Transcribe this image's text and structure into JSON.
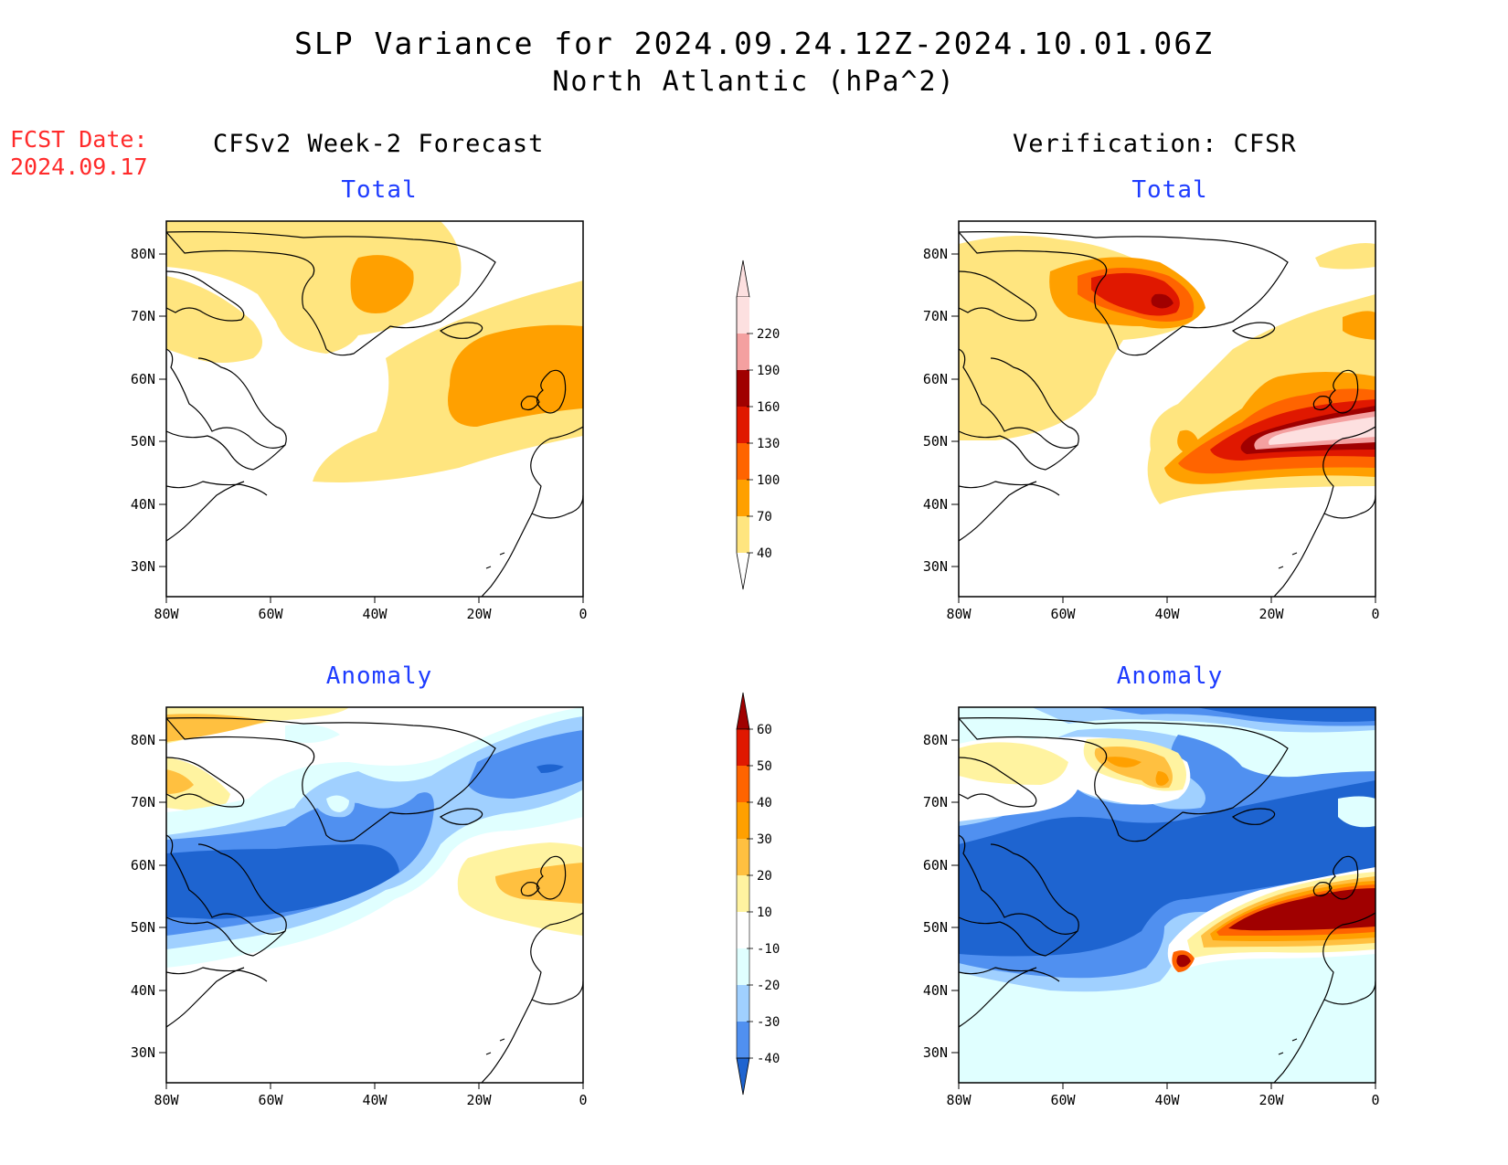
{
  "header": {
    "title": "SLP Variance for 2024.09.24.12Z-2024.10.01.06Z",
    "subtitle": "North Atlantic (hPa^2)"
  },
  "fcst_date": {
    "label": "FCST Date:",
    "value": "2024.09.17"
  },
  "columns": [
    {
      "title": "CFSv2 Week-2 Forecast"
    },
    {
      "title": "Verification: CFSR"
    }
  ],
  "panel_titles": {
    "total": "Total",
    "anomaly": "Anomaly"
  },
  "axes": {
    "lat_labels": [
      "80N",
      "70N",
      "60N",
      "50N",
      "40N",
      "30N"
    ],
    "lon_labels": [
      "80W",
      "60W",
      "40W",
      "20W",
      "0"
    ]
  },
  "colorbar_total": {
    "levels": [
      "220",
      "190",
      "160",
      "130",
      "100",
      "70",
      "40"
    ],
    "colors": [
      "#fde0e0",
      "#f4a0a0",
      "#a00000",
      "#e01800",
      "#ff6400",
      "#ffa000",
      "#ffe57f"
    ]
  },
  "colorbar_anomaly": {
    "levels": [
      "60",
      "50",
      "40",
      "30",
      "20",
      "10",
      "-10",
      "-20",
      "-30",
      "-40"
    ],
    "colors": [
      "#a00000",
      "#e01800",
      "#ff6400",
      "#ffa000",
      "#ffc040",
      "#fff3a0",
      "#ffffff",
      "#e0ffff",
      "#a0d0ff",
      "#5090f0",
      "#1e64d0"
    ]
  },
  "palette": {
    "white": "#ffffff",
    "light_yellow": "#ffe57f",
    "orange": "#ffa000",
    "dark_orange": "#ff6400",
    "red": "#e01800",
    "dark_red": "#a00000",
    "pink": "#f4a0a0",
    "light_pink": "#fde0e0",
    "pale_yellow": "#fff3a0",
    "light_orange": "#ffc040",
    "pale_cyan": "#e0ffff",
    "light_blue": "#a0d0ff",
    "mid_blue": "#5090f0",
    "blue": "#1e64d0"
  }
}
